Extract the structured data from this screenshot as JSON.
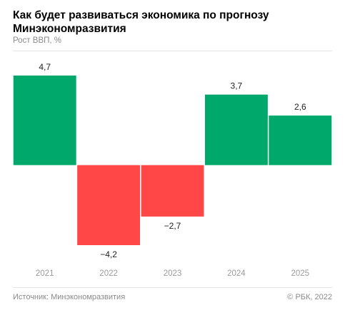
{
  "header": {
    "title": "Как будет развиваться экономика по прогнозу Минэкономразвития",
    "subtitle": "Рост ВВП, %"
  },
  "footer": {
    "source": "Источник: Минэкономразвития",
    "copyright": "© РБК, 2022"
  },
  "colors": {
    "positive": "#00a86b",
    "negative": "#ff4747"
  },
  "chart_data": {
    "type": "bar",
    "categories": [
      "2021",
      "2022",
      "2023",
      "2024",
      "2025"
    ],
    "values": [
      4.7,
      -4.2,
      -2.7,
      3.7,
      2.6
    ],
    "value_labels": [
      "4,7",
      "−4,2",
      "−2,7",
      "3,7",
      "2,6"
    ],
    "title": "Как будет развиваться экономика по прогнозу Минэкономразвития",
    "ylabel": "Рост ВВП, %",
    "xlabel": "",
    "ylim": [
      -4.2,
      4.7
    ],
    "grid": false,
    "legend": "none"
  }
}
